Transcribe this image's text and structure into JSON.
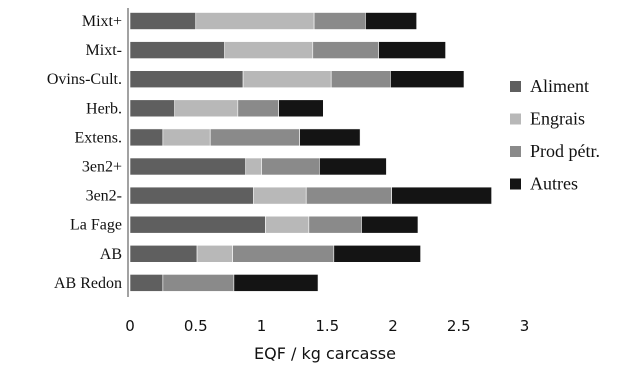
{
  "chart_data": {
    "type": "bar",
    "orientation": "horizontal",
    "stacked": true,
    "categories": [
      "Mixt+",
      "Mixt-",
      "Ovins-Cult.",
      "Herb.",
      "Extens.",
      "3en2+",
      "3en2-",
      "La Fage",
      "AB",
      "AB Redon"
    ],
    "series": [
      {
        "name": "Aliment",
        "color": "#5f5f5f",
        "values": [
          0.5,
          0.72,
          0.86,
          0.34,
          0.25,
          0.88,
          0.94,
          1.03,
          0.51,
          0.25
        ]
      },
      {
        "name": "Engrais",
        "color": "#b8b8b8",
        "values": [
          0.9,
          0.67,
          0.67,
          0.48,
          0.36,
          0.12,
          0.4,
          0.33,
          0.27,
          0.0
        ]
      },
      {
        "name": "Prod pétr.",
        "color": "#8a8a8a",
        "values": [
          0.39,
          0.5,
          0.45,
          0.31,
          0.68,
          0.44,
          0.65,
          0.4,
          0.77,
          0.54
        ]
      },
      {
        "name": "Autres",
        "color": "#141414",
        "values": [
          0.39,
          0.51,
          0.56,
          0.34,
          0.46,
          0.51,
          0.76,
          0.43,
          0.66,
          0.64
        ]
      }
    ],
    "xlabel": "EQF / kg carcasse",
    "ylabel": "",
    "xlim": [
      0,
      3
    ],
    "xticks": [
      "0",
      "0.5",
      "1",
      "1.5",
      "2",
      "2.5",
      "3"
    ],
    "grid": false,
    "legend_position": "right"
  }
}
